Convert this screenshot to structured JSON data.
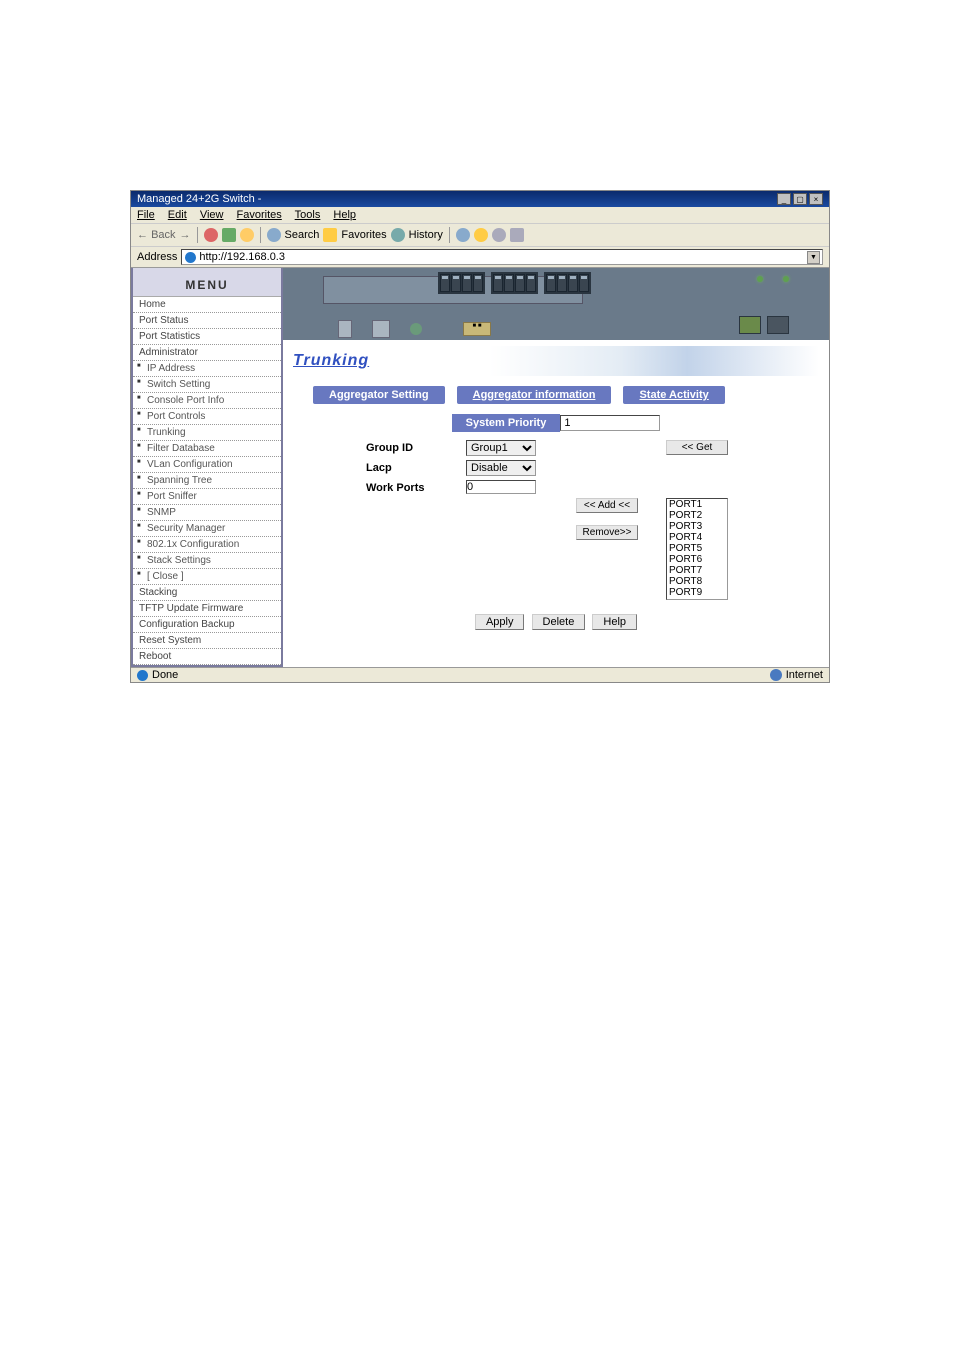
{
  "window": {
    "title": "Managed 24+2G Switch -",
    "controls": {
      "min": "_",
      "max": "▢",
      "close": "×"
    }
  },
  "menubar": {
    "file": "File",
    "edit": "Edit",
    "view": "View",
    "favorites": "Favorites",
    "tools": "Tools",
    "help": "Help"
  },
  "toolbar": {
    "back": "Back",
    "forward": "",
    "stop": "",
    "refresh": "",
    "home": "",
    "search": "Search",
    "favorites": "Favorites",
    "history": "History"
  },
  "address": {
    "label": "Address",
    "url": "http://192.168.0.3"
  },
  "sidebar": {
    "header": "MENU",
    "items": [
      {
        "label": "Home",
        "sub": false
      },
      {
        "label": "Port Status",
        "sub": false
      },
      {
        "label": "Port Statistics",
        "sub": false
      },
      {
        "label": "Administrator",
        "sub": false
      },
      {
        "label": "IP Address",
        "sub": true
      },
      {
        "label": "Switch Setting",
        "sub": true
      },
      {
        "label": "Console Port Info",
        "sub": true
      },
      {
        "label": "Port Controls",
        "sub": true
      },
      {
        "label": "Trunking",
        "sub": true
      },
      {
        "label": "Filter Database",
        "sub": true
      },
      {
        "label": "VLan Configuration",
        "sub": true
      },
      {
        "label": "Spanning Tree",
        "sub": true
      },
      {
        "label": "Port Sniffer",
        "sub": true
      },
      {
        "label": "SNMP",
        "sub": true
      },
      {
        "label": "Security Manager",
        "sub": true
      },
      {
        "label": "802.1x Configuration",
        "sub": true
      },
      {
        "label": "Stack Settings",
        "sub": true
      },
      {
        "label": "[ Close ]",
        "sub": true
      },
      {
        "label": "Stacking",
        "sub": false
      },
      {
        "label": "TFTP Update Firmware",
        "sub": false
      },
      {
        "label": "Configuration Backup",
        "sub": false
      },
      {
        "label": "Reset System",
        "sub": false
      },
      {
        "label": "Reboot",
        "sub": false
      }
    ]
  },
  "page": {
    "title": "Trunking",
    "tabs": {
      "setting": "Aggregator Setting",
      "info": "Aggregator information",
      "state": "State Activity"
    }
  },
  "form": {
    "system_priority_label": "System Priority",
    "system_priority_value": "1",
    "group_id_label": "Group ID",
    "group_id_value": "Group1",
    "get_btn": "<< Get",
    "lacp_label": "Lacp",
    "lacp_value": "Disable",
    "work_ports_label": "Work Ports",
    "work_ports_value": "0",
    "add_btn": "<< Add <<",
    "remove_btn": "Remove>>",
    "ports": [
      "PORT1",
      "PORT2",
      "PORT3",
      "PORT4",
      "PORT5",
      "PORT6",
      "PORT7",
      "PORT8",
      "PORT9"
    ],
    "apply": "Apply",
    "delete": "Delete",
    "help": "Help"
  },
  "statusbar": {
    "done": "Done",
    "zone": "Internet"
  },
  "colors": {
    "titlebar": "#1a4aa0",
    "menubg": "#ece9d8",
    "tabblue": "#6878c0",
    "link": "#3050c0",
    "switchbg": "#6a7a8a"
  }
}
